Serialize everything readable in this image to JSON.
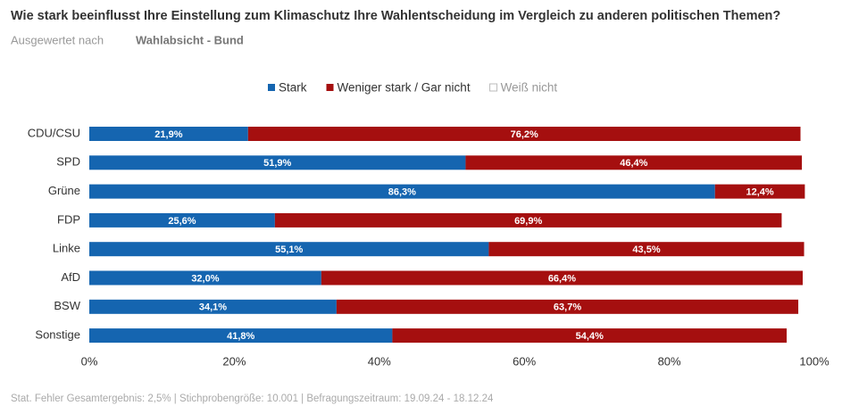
{
  "chart_data": {
    "type": "stacked_barh",
    "title": "Wie stark beeinflusst Ihre Einstellung zum Klimaschutz Ihre Wahlentscheidung im Vergleich zu anderen politischen Themen?",
    "subtitle_label": "Ausgewertet nach",
    "subtitle": "Wahlabsicht - Bund",
    "footer": "Stat. Fehler Gesamtergebnis: 2,5% | Stichprobengröße: 10.001 | Befragungszeitraum: 19.09.24 - 18.12.24",
    "categories": [
      "CDU/CSU",
      "SPD",
      "Grüne",
      "FDP",
      "Linke",
      "AfD",
      "BSW",
      "Sonstige"
    ],
    "series": [
      {
        "name": "Stark",
        "color": "#1565b0",
        "values": [
          21.9,
          51.9,
          86.3,
          25.6,
          55.1,
          32.0,
          34.1,
          41.8
        ],
        "value_labels": [
          "21,9%",
          "51,9%",
          "86,3%",
          "25,6%",
          "55,1%",
          "32,0%",
          "34,1%",
          "41,8%"
        ]
      },
      {
        "name": "Weniger stark / Gar nicht",
        "color": "#a50f0f",
        "values": [
          76.2,
          46.4,
          12.4,
          69.9,
          43.5,
          66.4,
          63.7,
          54.4
        ],
        "value_labels": [
          "76,2%",
          "46,4%",
          "12,4%",
          "69,9%",
          "43,5%",
          "66,4%",
          "63,7%",
          "54,4%"
        ]
      },
      {
        "name": "Weiß nicht",
        "color": "#ffffff",
        "values": [
          1.9,
          1.7,
          1.3,
          4.5,
          1.4,
          1.6,
          2.2,
          3.8
        ]
      }
    ],
    "xlim": [
      0,
      100
    ],
    "xticks": [
      {
        "value": 0,
        "label": "0%"
      },
      {
        "value": 20,
        "label": "20%"
      },
      {
        "value": 40,
        "label": "40%"
      },
      {
        "value": 60,
        "label": "60%"
      },
      {
        "value": 80,
        "label": "80%"
      },
      {
        "value": 100,
        "label": "100%"
      }
    ],
    "grid": false,
    "legend": "top"
  }
}
